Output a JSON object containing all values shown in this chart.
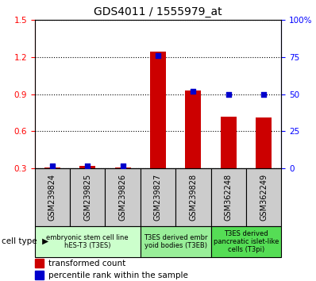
{
  "title": "GDS4011 / 1555979_at",
  "samples": [
    "GSM239824",
    "GSM239825",
    "GSM239826",
    "GSM239827",
    "GSM239828",
    "GSM362248",
    "GSM362249"
  ],
  "transformed_count": [
    0.31,
    0.32,
    0.31,
    1.24,
    0.93,
    0.72,
    0.71
  ],
  "percentile_rank": [
    2,
    2,
    2,
    76,
    52,
    50,
    50
  ],
  "ylim_left": [
    0.3,
    1.5
  ],
  "ylim_right": [
    0,
    100
  ],
  "yticks_left": [
    0.3,
    0.6,
    0.9,
    1.2,
    1.5
  ],
  "yticks_right": [
    0,
    25,
    50,
    75,
    100
  ],
  "ytick_labels_right": [
    "0",
    "25",
    "50",
    "75",
    "100%"
  ],
  "bar_color": "#cc0000",
  "dot_color": "#0000cc",
  "bar_width": 0.45,
  "cell_groups": [
    {
      "label": "embryonic stem cell line\nhES-T3 (T3ES)",
      "start": 0,
      "end": 3,
      "color": "#ccffcc"
    },
    {
      "label": "T3ES derived embr\nyoid bodies (T3EB)",
      "start": 3,
      "end": 5,
      "color": "#99ee99"
    },
    {
      "label": "T3ES derived\npancreatic islet-like\ncells (T3pi)",
      "start": 5,
      "end": 7,
      "color": "#55dd55"
    }
  ],
  "xlabel_cell_type": "cell type",
  "legend_bar_label": "transformed count",
  "legend_dot_label": "percentile rank within the sample",
  "title_fontsize": 10,
  "tick_fontsize": 7.5,
  "label_fontsize": 8,
  "gsm_box_color": "#cccccc",
  "sample_fontsize": 7
}
